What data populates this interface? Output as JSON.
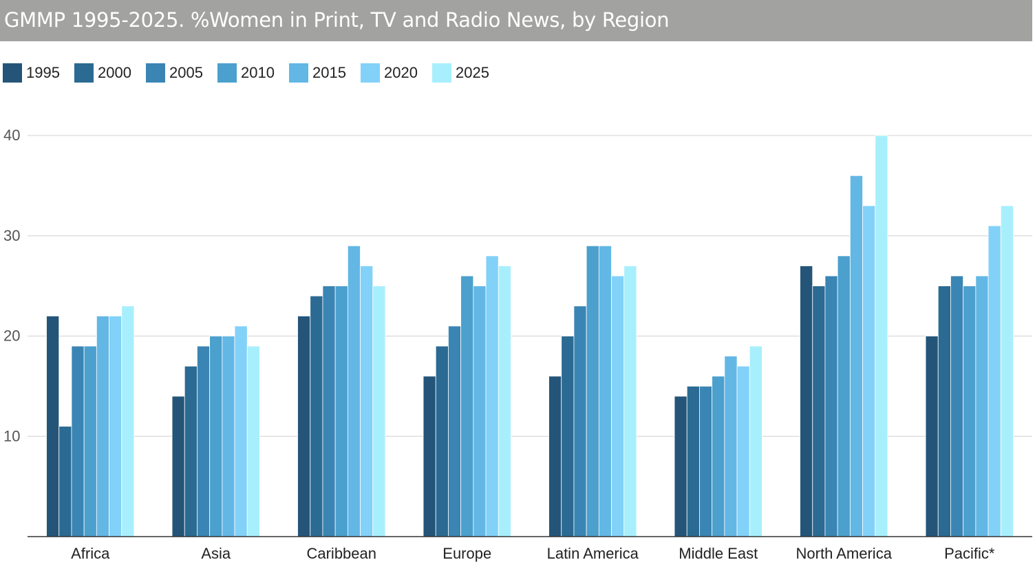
{
  "chart_data": {
    "type": "bar",
    "title": "GMMP 1995-2025. %Women in Print, TV and Radio News, by Region",
    "categories": [
      "Africa",
      "Asia",
      "Caribbean",
      "Europe",
      "Latin America",
      "Middle East",
      "North America",
      "Pacific*"
    ],
    "series": [
      {
        "name": "1995",
        "color": "#245579",
        "values": [
          22,
          14,
          22,
          16,
          16,
          14,
          27,
          20
        ]
      },
      {
        "name": "2000",
        "color": "#2b6a92",
        "values": [
          11,
          17,
          24,
          19,
          20,
          15,
          25,
          25
        ]
      },
      {
        "name": "2005",
        "color": "#3a85b3",
        "values": [
          19,
          19,
          25,
          21,
          23,
          15,
          26,
          26
        ]
      },
      {
        "name": "2010",
        "color": "#4ba0cd",
        "values": [
          19,
          20,
          25,
          26,
          29,
          16,
          28,
          25
        ]
      },
      {
        "name": "2015",
        "color": "#63b7e5",
        "values": [
          22,
          20,
          29,
          25,
          29,
          18,
          36,
          26
        ]
      },
      {
        "name": "2020",
        "color": "#82d1f8",
        "values": [
          22,
          21,
          27,
          28,
          26,
          17,
          33,
          31
        ]
      },
      {
        "name": "2025",
        "color": "#a8effd",
        "values": [
          23,
          19,
          25,
          27,
          27,
          19,
          40,
          33
        ]
      }
    ],
    "y_ticks": [
      10,
      20,
      30,
      40
    ],
    "ylim": [
      0,
      40
    ],
    "xlabel": "",
    "ylabel": "",
    "grid": true,
    "legend_position": "top-left"
  }
}
